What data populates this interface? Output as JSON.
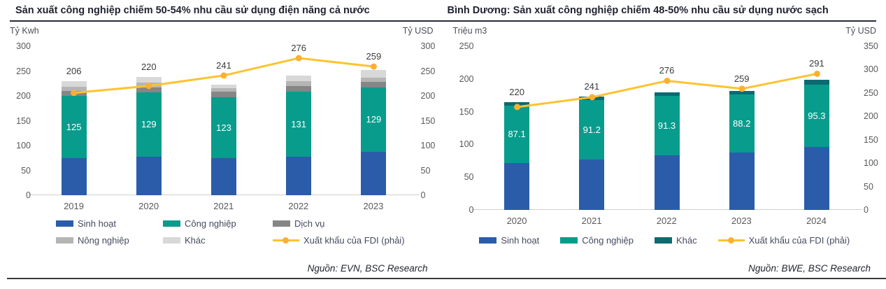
{
  "page": {
    "background": "#FFFFFF",
    "accent_colors": {
      "bar_blue": "#2B5CA9",
      "bar_teal": "#089C8C",
      "bar_dark_teal": "#0C6A70",
      "gray_dark": "#868686",
      "gray_medium": "#B5B5B5",
      "gray_light": "#D8D8D8",
      "line_yellow": "#FDC330"
    }
  },
  "chart_data": [
    {
      "type": "bar",
      "variant": "stacked-columns-with-line-overlay",
      "title": "Sản xuất công nghiệp chiếm 50-54% nhu cầu sử dụng điện năng cả nước",
      "source": "Nguồn: EVN, BSC Research",
      "categories": [
        "2019",
        "2020",
        "2021",
        "2022",
        "2023"
      ],
      "left_axis": {
        "unit": "Tỷ Kwh",
        "min": 0,
        "max": 300,
        "step": 50
      },
      "right_axis": {
        "unit": "Tỷ USD",
        "min": 0,
        "max": 300,
        "step": 50
      },
      "grid": false,
      "legend_position": "bottom",
      "series": [
        {
          "name": "Sinh hoạt",
          "color": "#2B5CA9",
          "values": [
            75,
            78,
            74,
            78,
            88
          ]
        },
        {
          "name": "Công nghiệp",
          "color": "#089C8C",
          "values": [
            125,
            129,
            123,
            131,
            129
          ],
          "labeled": true,
          "label_color": "#FFFFFF"
        },
        {
          "name": "Dịch vụ",
          "color": "#868686",
          "values": [
            10,
            10,
            11,
            11,
            11
          ]
        },
        {
          "name": "Nông nghiệp",
          "color": "#B5B5B5",
          "values": [
            9,
            10,
            7,
            9,
            9
          ]
        },
        {
          "name": "Khác",
          "color": "#D8D8D8",
          "values": [
            11,
            11,
            7,
            12,
            15
          ]
        }
      ],
      "line_series": {
        "name": "Xuất khẩu của FDI (phải)",
        "axis": "right",
        "color": "#FDC330",
        "marker_color": "#FBB033",
        "values": [
          206,
          220,
          241,
          276,
          259
        ]
      }
    },
    {
      "type": "bar",
      "variant": "stacked-columns-with-line-overlay",
      "title": "Bình Dương: Sản xuất công nghiệp chiếm 48-50% nhu cầu sử dụng nước sạch",
      "source": "Nguồn: BWE, BSC Research",
      "categories": [
        "2020",
        "2021",
        "2022",
        "2023",
        "2024"
      ],
      "left_axis": {
        "unit": "Triệu m3",
        "min": 0,
        "max": 250,
        "step": 50
      },
      "right_axis": {
        "unit": "Tỷ USD",
        "min": 0,
        "max": 350,
        "step": 50
      },
      "grid": false,
      "legend_position": "bottom",
      "series": [
        {
          "name": "Sinh hoạt",
          "color": "#2B5CA9",
          "values": [
            72,
            77,
            83,
            88,
            96
          ]
        },
        {
          "name": "Công nghiệp",
          "color": "#089C8C",
          "values": [
            87.1,
            91.2,
            91.3,
            88.2,
            95.3
          ],
          "labeled": true,
          "label_color": "#FFFFFF"
        },
        {
          "name": "Khác",
          "color": "#0C6A70",
          "values": [
            5,
            4.5,
            5,
            5.5,
            7
          ]
        }
      ],
      "line_series": {
        "name": "Xuất khẩu của FDI (phải)",
        "axis": "right",
        "color": "#FDC330",
        "marker_color": "#FBB033",
        "values": [
          220,
          241,
          276,
          259,
          291
        ]
      }
    }
  ]
}
